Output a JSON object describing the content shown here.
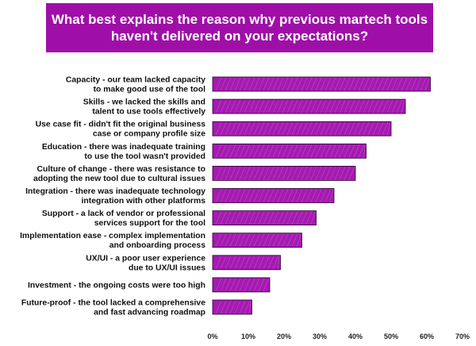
{
  "chart_data": {
    "type": "bar",
    "orientation": "horizontal",
    "title": [
      "What best explains the reason why previous martech tools",
      "haven't delivered on your expectations?"
    ],
    "categories": [
      [
        "Capacity - our team lacked capacity",
        "to make good use of the tool"
      ],
      [
        "Skills - we lacked the skills and",
        "talent to use tools effectively"
      ],
      [
        "Use case fit - didn't fit the original business",
        "case or company profile size"
      ],
      [
        "Education - there was inadequate training",
        "to use the tool wasn't provided"
      ],
      [
        "Culture of change - there was resistance to",
        "adopting the new tool due to cultural issues"
      ],
      [
        "Integration - there was inadequate technology",
        "integration with other platforms"
      ],
      [
        "Support - a lack of vendor or professional",
        "services support for the tool"
      ],
      [
        "Implementation ease - complex implementation",
        "and onboarding process"
      ],
      [
        "UX/UI - a poor user experience",
        "due to UX/UI issues"
      ],
      [
        "Investment - the ongoing costs were too high"
      ],
      [
        "Future-proof - the tool lacked a comprehensive",
        "and fast advancing roadmap"
      ]
    ],
    "values": [
      61,
      54,
      50,
      43,
      40,
      34,
      29,
      25,
      19,
      16,
      11
    ],
    "xlim": [
      0,
      70
    ],
    "xticks": [
      "0%",
      "10%",
      "20%",
      "30%",
      "40%",
      "50%",
      "60%",
      "70%"
    ],
    "unit": "%",
    "grid": false,
    "bar_color": "#a41bb0",
    "banner_color": "#9f0fa8"
  }
}
